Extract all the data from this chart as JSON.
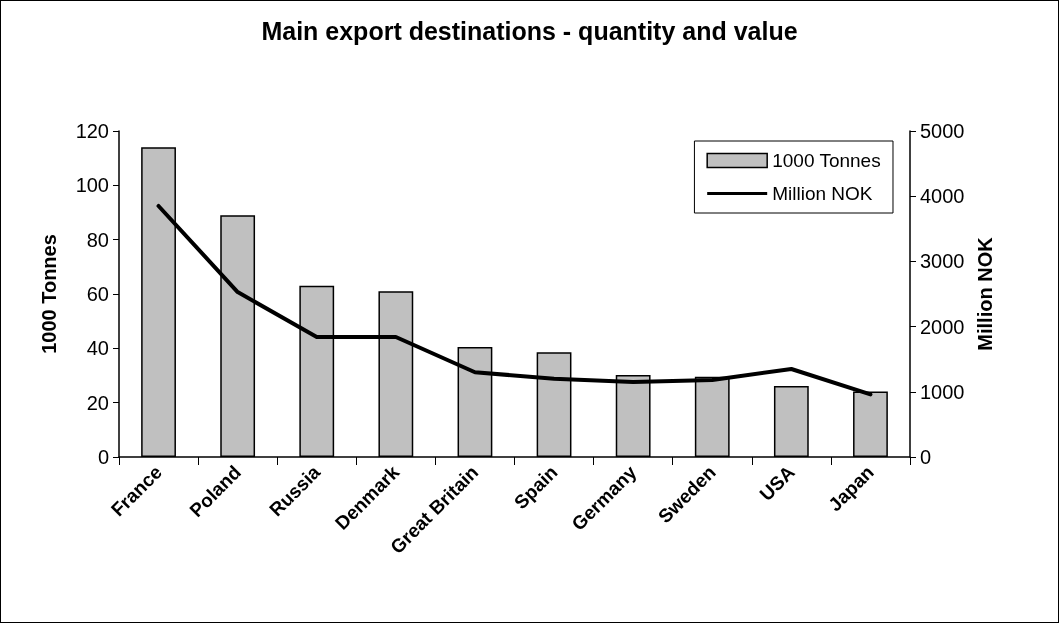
{
  "chart_data": {
    "type": "bar",
    "title": "Main export destinations - quantity and value",
    "ylabel": "1000 Tonnes",
    "y2label": "Million NOK",
    "categories": [
      "France",
      "Poland",
      "Russia",
      "Denmark",
      "Great Britain",
      "Spain",
      "Germany",
      "Sweden",
      "USA",
      "Japan"
    ],
    "series": [
      {
        "name": "1000 Tonnes",
        "color": "#c0c0c0",
        "values": [
          114,
          89,
          63,
          61,
          40.5,
          38.6,
          30.2,
          29.5,
          26.1,
          24.1
        ]
      },
      {
        "name": "Million NOK",
        "type": "line",
        "axis": "y2",
        "color": "#000000",
        "values": [
          3850,
          2530,
          1840,
          1840,
          1300,
          1200,
          1150,
          1180,
          1350,
          960
        ]
      }
    ],
    "ylim": [
      0,
      120
    ],
    "yticks": [
      0,
      20,
      40,
      60,
      80,
      100,
      120
    ],
    "y2lim": [
      0,
      5000
    ],
    "y2ticks": [
      0,
      1000,
      2000,
      3000,
      4000,
      5000
    ],
    "grid": false,
    "legend": "top right",
    "marker": "none",
    "line_style": "solid"
  }
}
